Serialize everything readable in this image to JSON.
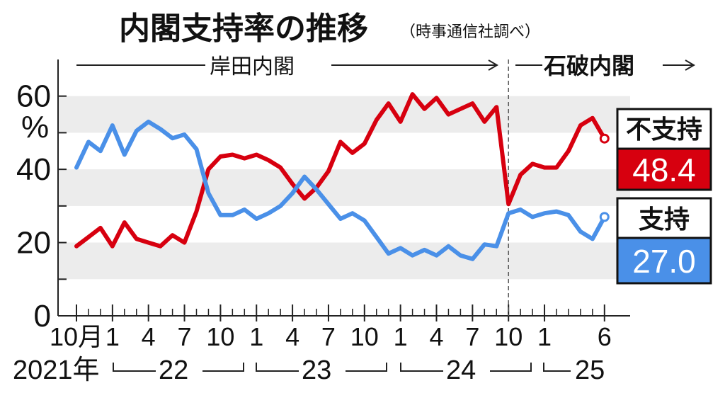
{
  "title": "内閣支持率の推移",
  "source": "（時事通信社調べ）",
  "eras": [
    {
      "label": "岸田内閣",
      "bold": false
    },
    {
      "label": "石破内閣",
      "bold": true
    }
  ],
  "y_unit": "%",
  "colors": {
    "disapprove": "#d7000f",
    "approve": "#4a90e8",
    "band": "#ececec",
    "axis": "#222222"
  },
  "year_labels": [
    {
      "label": "2021年"
    },
    {
      "label": "22"
    },
    {
      "label": "23"
    },
    {
      "label": "24"
    },
    {
      "label": "25"
    }
  ],
  "chart_data": {
    "type": "line",
    "title": "内閣支持率の推移",
    "subtitle": "（時事通信社調べ）",
    "xlabel": "",
    "ylabel": "%",
    "ylim": [
      0,
      70
    ],
    "yticks": [
      0,
      20,
      40,
      60
    ],
    "x": [
      "2021-10",
      "2021-11",
      "2021-12",
      "2022-01",
      "2022-02",
      "2022-03",
      "2022-04",
      "2022-05",
      "2022-06",
      "2022-07",
      "2022-08",
      "2022-09",
      "2022-10",
      "2022-11",
      "2022-12",
      "2023-01",
      "2023-02",
      "2023-03",
      "2023-04",
      "2023-05",
      "2023-06",
      "2023-07",
      "2023-08",
      "2023-09",
      "2023-10",
      "2023-11",
      "2023-12",
      "2024-01",
      "2024-02",
      "2024-03",
      "2024-04",
      "2024-05",
      "2024-06",
      "2024-07",
      "2024-08",
      "2024-09",
      "2024-10",
      "2024-11",
      "2024-12",
      "2025-01",
      "2025-02",
      "2025-03",
      "2025-04",
      "2025-05",
      "2025-06"
    ],
    "x_tick_labels": [
      {
        "x": "2021-10",
        "label": "10月"
      },
      {
        "x": "2022-01",
        "label": "1"
      },
      {
        "x": "2022-04",
        "label": "4"
      },
      {
        "x": "2022-07",
        "label": "7"
      },
      {
        "x": "2022-10",
        "label": "10"
      },
      {
        "x": "2023-01",
        "label": "1"
      },
      {
        "x": "2023-04",
        "label": "4"
      },
      {
        "x": "2023-07",
        "label": "7"
      },
      {
        "x": "2023-10",
        "label": "10"
      },
      {
        "x": "2024-01",
        "label": "1"
      },
      {
        "x": "2024-04",
        "label": "4"
      },
      {
        "x": "2024-07",
        "label": "7"
      },
      {
        "x": "2024-10",
        "label": "10"
      },
      {
        "x": "2025-01",
        "label": "1"
      },
      {
        "x": "2025-06",
        "label": "6"
      }
    ],
    "eras": [
      {
        "name": "岸田内閣",
        "from": "2021-10",
        "to": "2024-09"
      },
      {
        "name": "石破内閣",
        "from": "2024-10",
        "to": "2025-06"
      }
    ],
    "grid": "horizontal bands",
    "legend": "right, at line ends",
    "series": [
      {
        "name": "不支持",
        "color": "#d7000f",
        "values": [
          19,
          21.5,
          24,
          19,
          25.5,
          21,
          20,
          19,
          22,
          20,
          28.5,
          40,
          43.5,
          44,
          43,
          44,
          42.5,
          40.5,
          36,
          32,
          35,
          39.5,
          47.5,
          44.5,
          47,
          53.5,
          58,
          53,
          60.5,
          56.5,
          59.5,
          55,
          56.5,
          58,
          53,
          57,
          30.5,
          38.5,
          41.5,
          40.5,
          40.5,
          45,
          52,
          54,
          48.4
        ],
        "end_label": "48.4"
      },
      {
        "name": "支持",
        "color": "#4a90e8",
        "values": [
          40.5,
          47.5,
          45,
          52,
          44,
          50.5,
          53,
          51,
          48.5,
          49.5,
          45.5,
          33.5,
          27.5,
          27.5,
          29,
          26.5,
          28,
          30,
          33.5,
          38,
          34.5,
          30.5,
          26.5,
          28,
          26,
          21.5,
          17,
          18.5,
          16.5,
          18,
          16.5,
          19,
          16.5,
          15.5,
          19.5,
          19,
          28,
          29,
          27,
          28,
          28.5,
          27.5,
          23,
          21,
          27.0
        ],
        "end_label": "27.0"
      }
    ]
  }
}
